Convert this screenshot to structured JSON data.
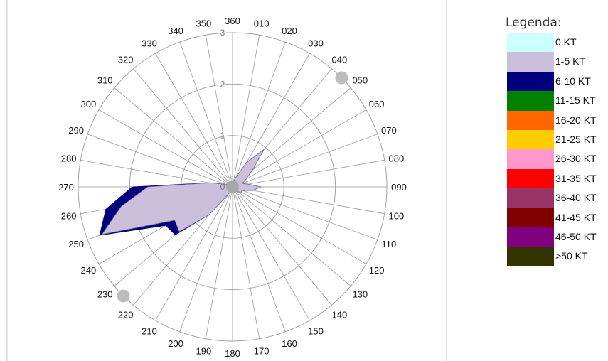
{
  "chart_data": {
    "type": "radar",
    "categories": [
      "360",
      "010",
      "020",
      "030",
      "040",
      "050",
      "060",
      "070",
      "080",
      "090",
      "100",
      "110",
      "120",
      "130",
      "140",
      "150",
      "160",
      "170",
      "180",
      "190",
      "200",
      "210",
      "220",
      "230",
      "240",
      "250",
      "260",
      "270",
      "280",
      "290",
      "300",
      "310",
      "320",
      "330",
      "340",
      "350"
    ],
    "series": [
      {
        "name": "1-5 KT",
        "color": "#cbbfdb",
        "values": [
          0.05,
          0.1,
          0.2,
          0.55,
          0.95,
          0.5,
          0.3,
          0.2,
          0.3,
          0.55,
          0.4,
          0.2,
          0.2,
          0.15,
          0.1,
          0.1,
          0.1,
          0.1,
          0.1,
          0.1,
          0.1,
          0.15,
          0.7,
          1.35,
          1.3,
          2.7,
          2.2,
          1.65,
          0.45,
          0.15,
          0.1,
          0.1,
          0.1,
          0.05,
          0.05,
          0.05
        ]
      },
      {
        "name": "6-10 KT",
        "color": "#00007f",
        "values": [
          0,
          0,
          0,
          0,
          0,
          0,
          0,
          0,
          0,
          0,
          0,
          0,
          0,
          0,
          0,
          0,
          0,
          0,
          0,
          0,
          0,
          0,
          0,
          0.1,
          0.2,
          0.05,
          0.3,
          0.3,
          0,
          0,
          0,
          0,
          0,
          0,
          0,
          0
        ]
      }
    ],
    "rlim": [
      0,
      3
    ],
    "r_ticks": [
      "0",
      "1",
      "2",
      "3"
    ],
    "markers": [
      {
        "direction": 45,
        "radius": 3
      },
      {
        "direction": 225,
        "radius": 3
      }
    ],
    "grid": true,
    "legend_position": "right"
  },
  "legend": {
    "title": "Legenda:",
    "items": [
      {
        "label": "0 KT",
        "color": "#ccffff"
      },
      {
        "label": "1-5 KT",
        "color": "#cbbfdb"
      },
      {
        "label": "6-10 KT",
        "color": "#00007f"
      },
      {
        "label": "11-15 KT",
        "color": "#008000"
      },
      {
        "label": "16-20 KT",
        "color": "#ff6600"
      },
      {
        "label": "21-25 KT",
        "color": "#ffcc00"
      },
      {
        "label": "26-30 KT",
        "color": "#ff99cc"
      },
      {
        "label": "31-35 KT",
        "color": "#ff0000"
      },
      {
        "label": "36-40 KT",
        "color": "#993366"
      },
      {
        "label": "41-45 KT",
        "color": "#800000"
      },
      {
        "label": "46-50 KT",
        "color": "#800080"
      },
      {
        "label": ">50 KT",
        "color": "#333300"
      }
    ]
  }
}
